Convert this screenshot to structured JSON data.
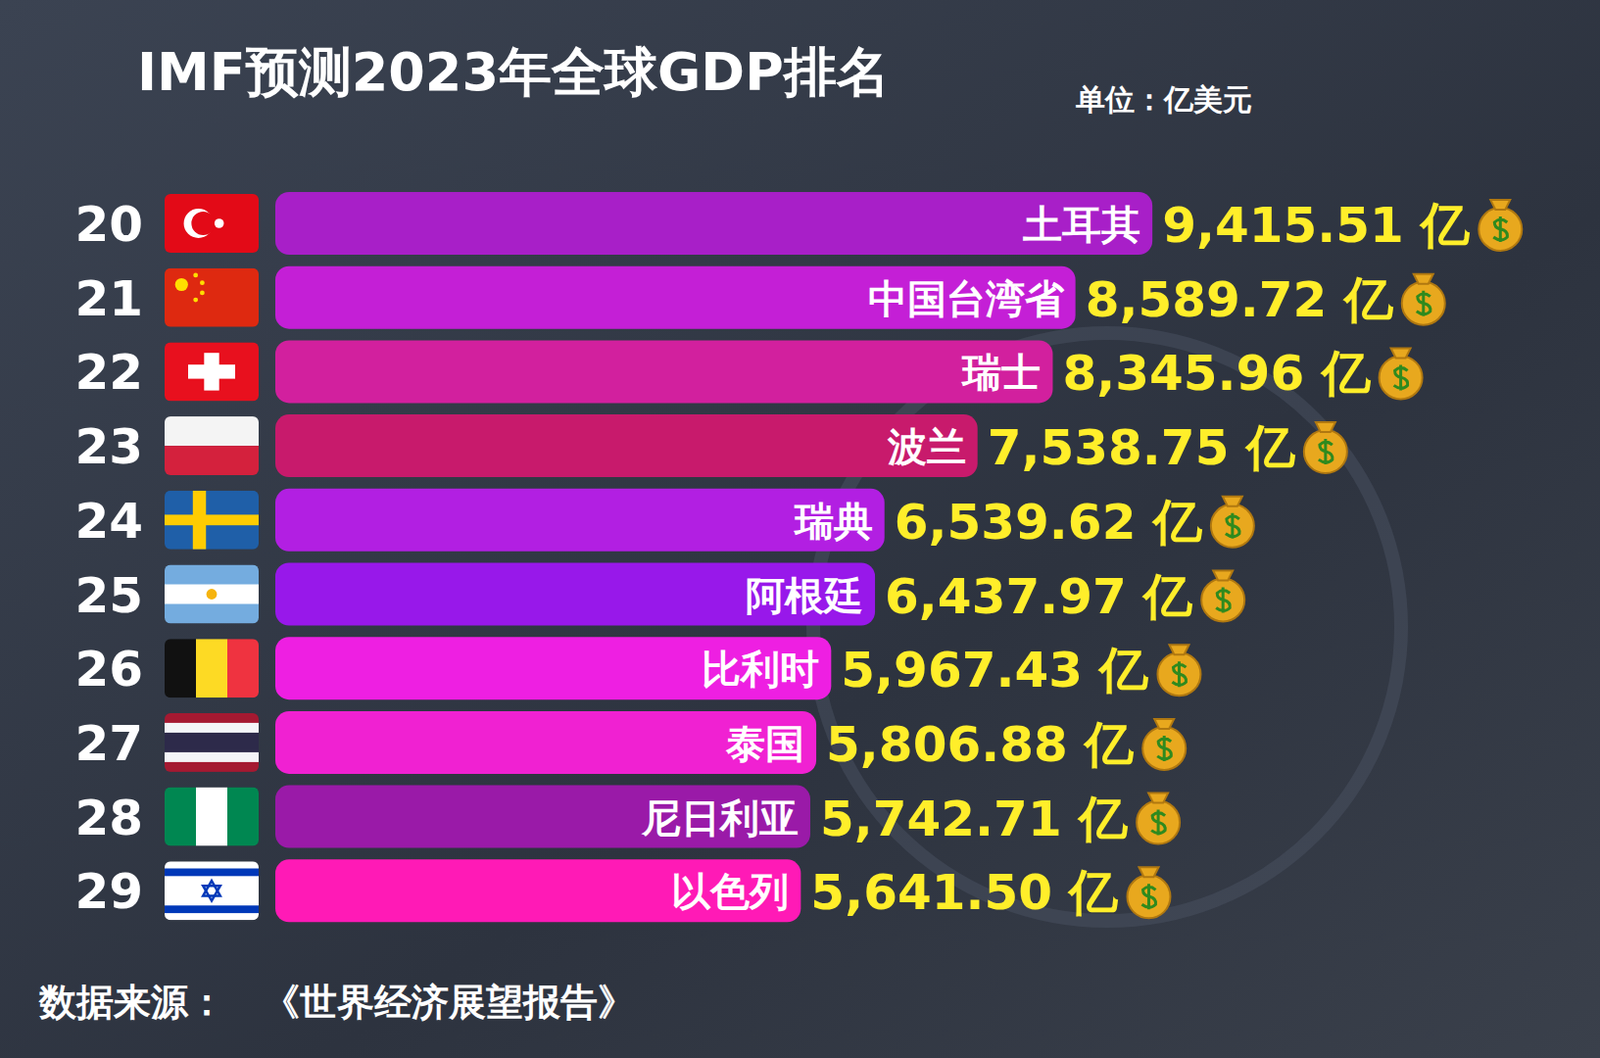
{
  "chart_data": {
    "type": "bar",
    "orientation": "horizontal",
    "title": "IMF预测2023年全球GDP排名",
    "subtitle": "单位：亿美元",
    "source": "数据来源：　《世界经济展望报告》",
    "ranks": [
      20,
      21,
      22,
      23,
      24,
      25,
      26,
      27,
      28,
      29
    ],
    "categories": [
      "土耳其",
      "中国台湾省",
      "瑞士",
      "波兰",
      "瑞典",
      "阿根廷",
      "比利时",
      "泰国",
      "尼日利亚",
      "以色列"
    ],
    "values": [
      9415.51,
      8589.72,
      8345.96,
      7538.75,
      6539.62,
      6437.97,
      5967.43,
      5806.88,
      5742.71,
      5641.5
    ],
    "value_labels": [
      "9,415.51 亿",
      "8,589.72 亿",
      "8,345.96 亿",
      "7,538.75 亿",
      "6,539.62 亿",
      "6,437.97 亿",
      "5,967.43 亿",
      "5,806.88 亿",
      "5,742.71 亿",
      "5,641.50 亿"
    ],
    "colors": [
      "#a81fc8",
      "#c41fd6",
      "#d2209e",
      "#c81a6c",
      "#b21fe2",
      "#9818ea",
      "#ee1fe2",
      "#f021d2",
      "#9a1aa8",
      "#ff1ab6"
    ],
    "xlim": [
      0,
      14000
    ],
    "data_labels": true,
    "tick_labels": false,
    "grid": false
  }
}
